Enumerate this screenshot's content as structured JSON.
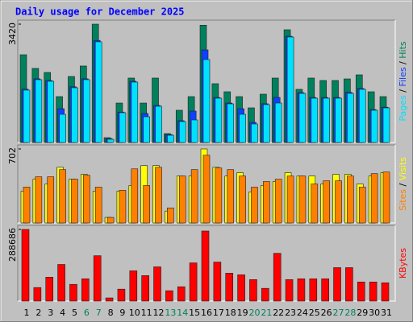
{
  "chart_data": [
    {
      "type": "bar",
      "title": "Daily usage for December 2025",
      "categories": [
        "1",
        "2",
        "3",
        "4",
        "5",
        "6",
        "7",
        "8",
        "9",
        "10",
        "11",
        "12",
        "13",
        "14",
        "15",
        "16",
        "17",
        "18",
        "19",
        "20",
        "21",
        "22",
        "23",
        "24",
        "25",
        "26",
        "27",
        "28",
        "29",
        "30",
        "31"
      ],
      "category_colors": [
        "#000000",
        "#000000",
        "#000000",
        "#000000",
        "#000000",
        "#00805c",
        "#00805c",
        "#000000",
        "#000000",
        "#000000",
        "#000000",
        "#000000",
        "#00805c",
        "#00805c",
        "#000000",
        "#000000",
        "#000000",
        "#000000",
        "#000000",
        "#00805c",
        "#00805c",
        "#000000",
        "#000000",
        "#000000",
        "#000000",
        "#000000",
        "#00805c",
        "#00805c",
        "#000000",
        "#000000",
        "#000000"
      ],
      "legend_separator": " / ",
      "ylim": [
        0,
        3420
      ],
      "yticks": [
        3420
      ],
      "series": [
        {
          "name": "Hits",
          "color": "#00805c",
          "values": [
            2536,
            2141,
            2024,
            1326,
            1908,
            2211,
            3420,
            140,
            1140,
            1862,
            1140,
            1862,
            256,
            931,
            1326,
            3390,
            1699,
            1466,
            1326,
            1001,
            1396,
            1862,
            3258,
            1536,
            1862,
            1792,
            1792,
            1838,
            1955,
            1466,
            1326
          ]
        },
        {
          "name": "Files",
          "color": "#1040ff",
          "values": [
            1540,
            1840,
            1790,
            977,
            1610,
            1840,
            2950,
            110,
            880,
            1770,
            838,
            1070,
            230,
            630,
            908,
            2676,
            1300,
            1140,
            977,
            582,
            1120,
            1303,
            3070,
            1440,
            1300,
            1300,
            1300,
            1450,
            1560,
            950,
            1020
          ]
        },
        {
          "name": "Pages",
          "color": "#00e0ff",
          "values": [
            1513,
            1815,
            1769,
            814,
            1582,
            1815,
            2909,
            93,
            861,
            1745,
            745,
            1047,
            209,
            605,
            652,
            2397,
            1280,
            1117,
            814,
            535,
            1094,
            1140,
            3048,
            1419,
            1280,
            1280,
            1280,
            1419,
            1536,
            931,
            1001
          ]
        }
      ]
    },
    {
      "type": "bar",
      "ylim": [
        0,
        702
      ],
      "yticks": [
        702
      ],
      "series": [
        {
          "name": "Visits",
          "color": "#ffff00",
          "values": [
            302,
            415,
            370,
            528,
            415,
            461,
            302,
            53,
            302,
            355,
            544,
            544,
            113,
            445,
            445,
            702,
            528,
            445,
            476,
            294,
            355,
            393,
            476,
            445,
            445,
            370,
            461,
            461,
            370,
            445,
            476
          ]
        },
        {
          "name": "Sites",
          "color": "#ff8000",
          "values": [
            340,
            438,
            438,
            506,
            415,
            453,
            340,
            53,
            310,
            513,
            355,
            528,
            143,
            445,
            506,
            642,
            521,
            506,
            445,
            340,
            393,
            415,
            445,
            445,
            370,
            400,
            400,
            445,
            340,
            468,
            483
          ]
        }
      ]
    },
    {
      "type": "bar",
      "ylim": [
        0,
        288686
      ],
      "yticks": [
        288686
      ],
      "series": [
        {
          "name": "KBytes",
          "color": "#ff0000",
          "values": [
            288686,
            54536,
            96240,
            147568,
            67368,
            89824,
            182856,
            12832,
            48120,
            121904,
            102656,
            137944,
            41704,
            57744,
            153984,
            282304,
            157192,
            112280,
            105864,
            86616,
            51328,
            192480,
            86616,
            89824,
            89824,
            89824,
            134736,
            134736,
            76992,
            76992,
            73784
          ]
        }
      ]
    }
  ]
}
